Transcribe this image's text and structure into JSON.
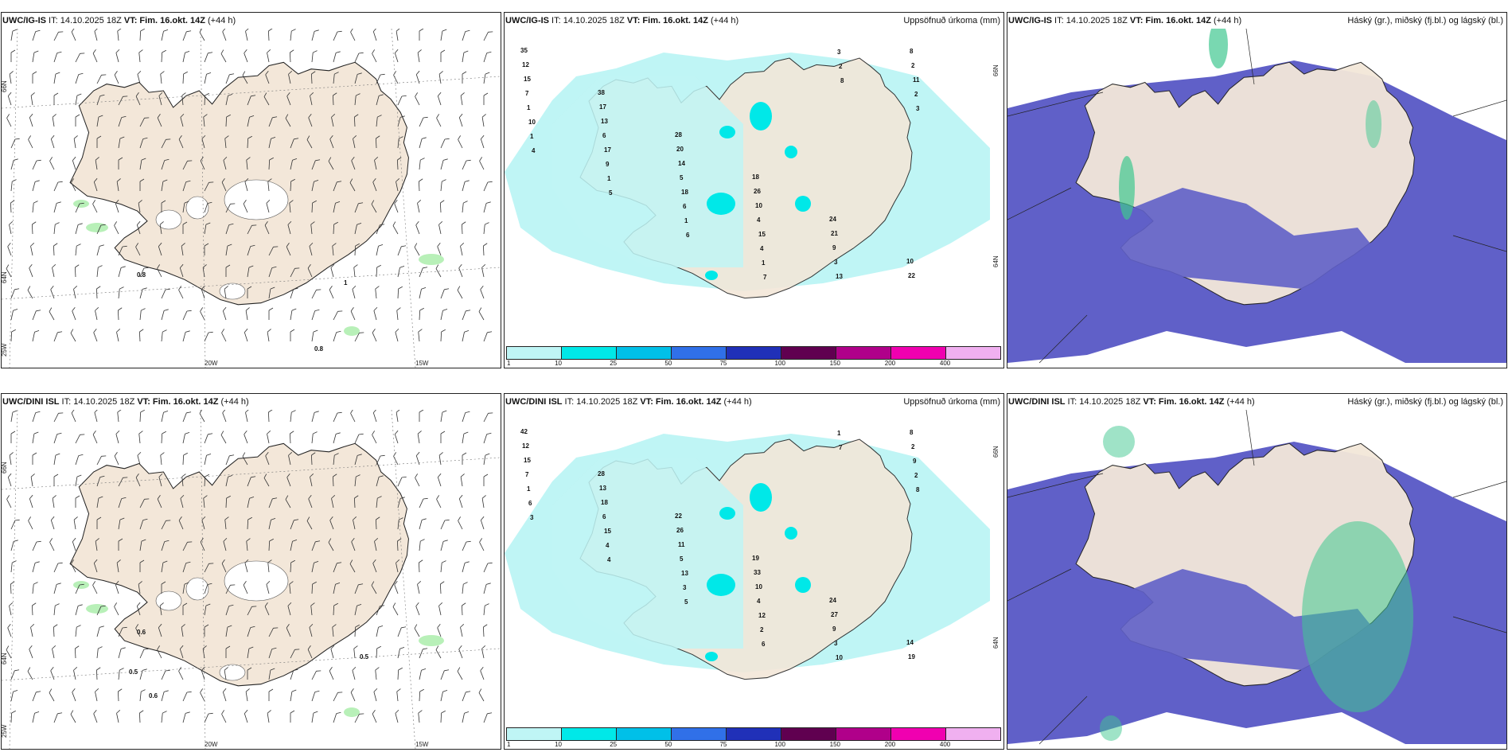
{
  "panels": [
    {
      "id": "p1",
      "model": "UWC/IG-IS",
      "it_label": "IT:",
      "it_value": "14.10.2025 18Z",
      "vt_label": "VT:",
      "vt_value": "Fim. 16.okt. 14Z",
      "lead": "(+44 h)",
      "right_title": "",
      "type": "wind",
      "axis_labels": {
        "lat_top": "66N",
        "lat_mid": "64N",
        "lat_bot": "25W",
        "lon_left": "20W",
        "lon_right": "15W"
      },
      "values": [
        "0.8",
        "1",
        "0.8"
      ]
    },
    {
      "id": "p2",
      "model": "UWC/IG-IS",
      "it_label": "IT:",
      "it_value": "14.10.2025 18Z",
      "vt_label": "VT:",
      "vt_value": "Fim. 16.okt. 14Z",
      "lead": "(+44 h)",
      "right_title": "Uppsöfnuð úrkoma (mm)",
      "type": "precip",
      "axis_labels": {
        "lat_top": "66N",
        "lat_mid": "64N"
      },
      "values": [
        "35",
        "38",
        "28",
        "18",
        "24",
        "10",
        "12",
        "17",
        "20",
        "26",
        "21",
        "22",
        "15",
        "13",
        "14",
        "10",
        "9",
        "8",
        "7",
        "6",
        "5",
        "4",
        "3",
        "2",
        "1",
        "17",
        "18",
        "15",
        "13",
        "11",
        "10",
        "9",
        "6",
        "4",
        "3",
        "2",
        "1",
        "1",
        "1",
        "1",
        "2",
        "3",
        "4",
        "5",
        "6",
        "7",
        "8"
      ]
    },
    {
      "id": "p3",
      "model": "UWC/IG-IS",
      "it_label": "IT:",
      "it_value": "14.10.2025 18Z",
      "vt_label": "VT:",
      "vt_value": "Fim. 16.okt. 14Z",
      "lead": "(+44 h)",
      "right_title": "Háský (gr.), miðský (fj.bl.) og lágský (bl.)",
      "type": "cloud"
    },
    {
      "id": "p4",
      "model": "UWC/DINI ISL",
      "it_label": "IT:",
      "it_value": "14.10.2025 18Z",
      "vt_label": "VT:",
      "vt_value": "Fim. 16.okt. 14Z",
      "lead": "(+44 h)",
      "right_title": "",
      "type": "wind",
      "axis_labels": {
        "lat_top": "66N",
        "lat_mid": "64N",
        "lat_bot": "25W",
        "lon_left": "20W",
        "lon_right": "15W"
      },
      "values": [
        "0.6",
        "0.5",
        "0.5",
        "0.6"
      ]
    },
    {
      "id": "p5",
      "model": "UWC/DINI ISL",
      "it_label": "IT:",
      "it_value": "14.10.2025 18Z",
      "vt_label": "VT:",
      "vt_value": "Fim. 16.okt. 14Z",
      "lead": "(+44 h)",
      "right_title": "Uppsöfnuð úrkoma (mm)",
      "type": "precip",
      "axis_labels": {
        "lat_top": "66N",
        "lat_mid": "64N"
      },
      "values": [
        "42",
        "28",
        "22",
        "19",
        "24",
        "14",
        "12",
        "13",
        "26",
        "33",
        "27",
        "19",
        "15",
        "18",
        "11",
        "10",
        "9",
        "8",
        "7",
        "6",
        "5",
        "4",
        "3",
        "2",
        "1",
        "15",
        "13",
        "12",
        "10",
        "9",
        "6",
        "4",
        "3",
        "2",
        "1",
        "2",
        "3",
        "4",
        "5",
        "6",
        "7",
        "8"
      ]
    },
    {
      "id": "p6",
      "model": "UWC/DINI ISL",
      "it_label": "IT:",
      "it_value": "14.10.2025 18Z",
      "vt_label": "VT:",
      "vt_value": "Fim. 16.okt. 14Z",
      "lead": "(+44 h)",
      "right_title": "Háský (gr.), miðský (fj.bl.) og lágský (bl.)",
      "type": "cloud"
    }
  ],
  "colorbar": {
    "colors": [
      "#bff5f5",
      "#00e8e8",
      "#00c0e8",
      "#3070e8",
      "#2030b8",
      "#600050",
      "#b0008a",
      "#f000b0",
      "#f0b0f0"
    ],
    "ticks": [
      "1",
      "10",
      "25",
      "50",
      "75",
      "100",
      "150",
      "200",
      "400"
    ]
  },
  "colors": {
    "land": "#f3e7d9",
    "precip_light": "#bff5f5",
    "precip_mid": "#00e8e8",
    "cloud_low": "#6060c8",
    "cloud_high": "#40c890",
    "wind_green": "#b8f0b8"
  }
}
